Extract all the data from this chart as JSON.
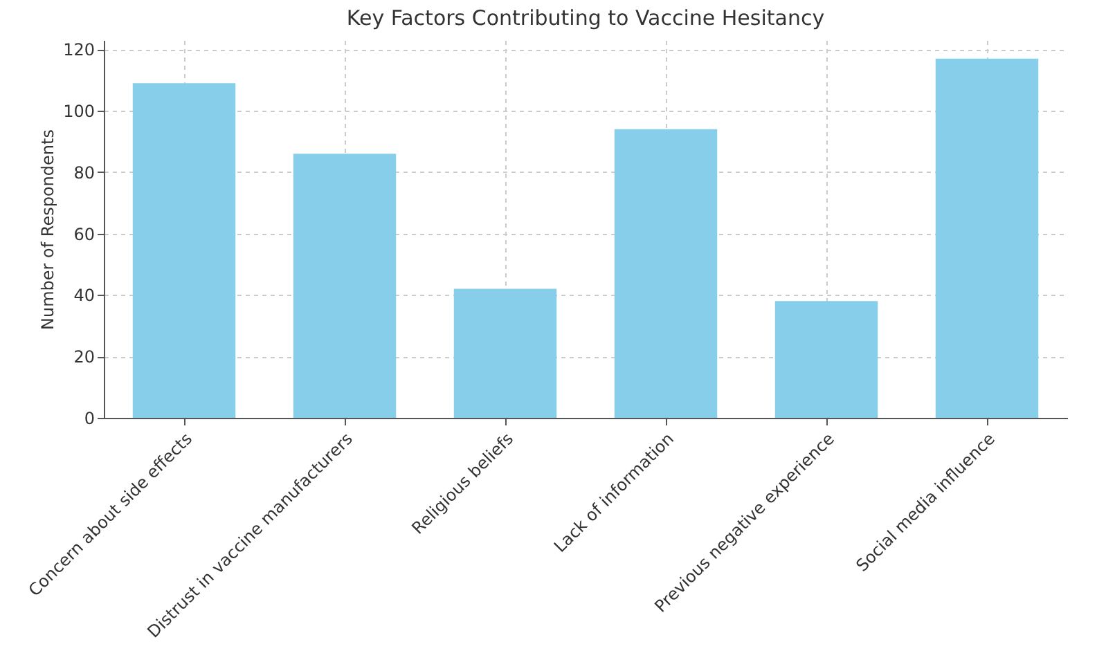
{
  "chart_data": {
    "type": "bar",
    "title": "Key Factors Contributing to Vaccine Hesitancy",
    "ylabel": "Number of Respondents",
    "categories": [
      "Concern about side effects",
      "Distrust in vaccine manufacturers",
      "Religious beliefs",
      "Lack of information",
      "Previous negative experience",
      "Social media influence"
    ],
    "values": [
      109,
      86,
      42,
      94,
      38,
      117
    ],
    "color": "#87ceeb",
    "ylim": [
      0,
      123
    ],
    "yticks": [
      0,
      20,
      40,
      60,
      80,
      100,
      120
    ],
    "grid": true,
    "line_style": "dashed"
  }
}
